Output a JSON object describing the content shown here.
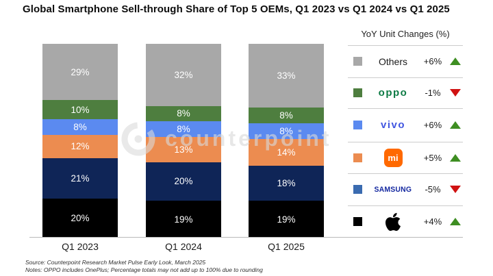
{
  "title": "Global Smartphone Sell-through Share of Top 5 OEMs, Q1 2023 vs Q1 2024 vs Q1 2025",
  "watermark": {
    "text": "counterpoint",
    "logo": "counterpoint-ring-logo"
  },
  "chart_data": {
    "type": "bar",
    "stacked": true,
    "unit": "%",
    "title": "Global Smartphone Sell-through Share of Top 5 OEMs, Q1 2023 vs Q1 2024 vs Q1 2025",
    "categories": [
      "Q1 2023",
      "Q1 2024",
      "Q1 2025"
    ],
    "series": [
      {
        "name": "Others",
        "color": "#a8a8a8",
        "values": [
          29,
          32,
          33
        ]
      },
      {
        "name": "OPPO",
        "color": "#4e7e3f",
        "values": [
          10,
          8,
          8
        ]
      },
      {
        "name": "vivo",
        "color": "#5b8af0",
        "values": [
          8,
          8,
          8
        ]
      },
      {
        "name": "Xiaomi",
        "color": "#ec8c50",
        "values": [
          12,
          13,
          14
        ]
      },
      {
        "name": "Samsung",
        "color": "#0f2557",
        "values": [
          21,
          20,
          18
        ]
      },
      {
        "name": "Apple",
        "color": "#000000",
        "values": [
          20,
          19,
          19
        ]
      }
    ],
    "ylim": [
      0,
      100
    ],
    "grid": false,
    "value_labels": "inside-white",
    "legend_position": "right"
  },
  "legend": {
    "header": "YoY Unit Changes (%)",
    "up_color": "#3e8e22",
    "down_color": "#d01212",
    "rows": [
      {
        "oem": "Others",
        "logo": "others-text",
        "label": "Others",
        "swatch": "#a8a8a8",
        "change": "+6%",
        "direction": "up"
      },
      {
        "oem": "OPPO",
        "logo": "oppo-wordmark",
        "label": "oppo",
        "swatch": "#4e7e3f",
        "change": "-1%",
        "direction": "down"
      },
      {
        "oem": "vivo",
        "logo": "vivo-wordmark",
        "label": "vivo",
        "swatch": "#5b8af0",
        "change": "+6%",
        "direction": "up"
      },
      {
        "oem": "Xiaomi",
        "logo": "mi-badge",
        "label": "mi",
        "swatch": "#ec8c50",
        "change": "+5%",
        "direction": "up"
      },
      {
        "oem": "Samsung",
        "logo": "samsung-wordmark",
        "label": "SAMSUNG",
        "swatch": "#3a6bb0",
        "change": "-5%",
        "direction": "down"
      },
      {
        "oem": "Apple",
        "logo": "apple-logo",
        "label": "",
        "swatch": "#000000",
        "change": "+4%",
        "direction": "up"
      }
    ]
  },
  "footer": {
    "source": "Source: Counterpoint Research Market Pulse Early Look, March 2025",
    "notes": "Notes: OPPO includes OnePlus; Percentage totals may not add up to 100% due to rounding"
  }
}
